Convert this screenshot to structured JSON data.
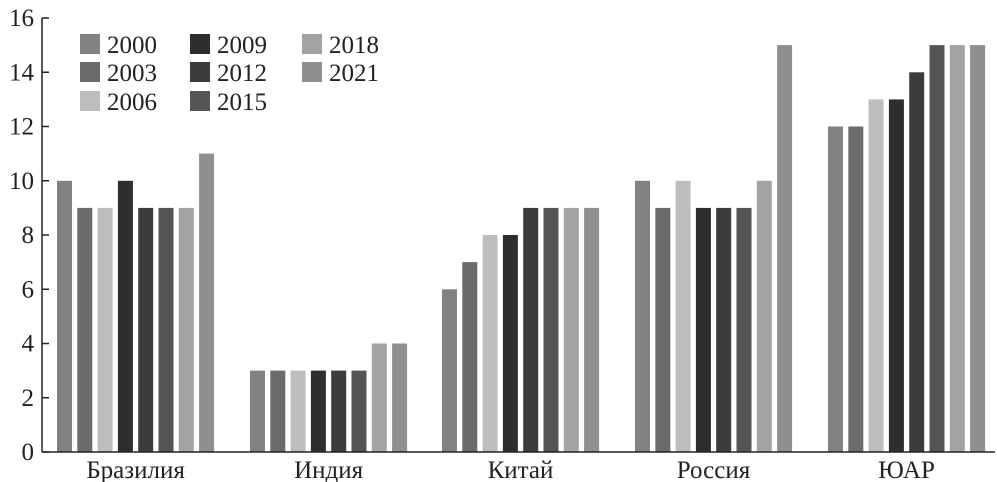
{
  "chart_data": {
    "type": "bar",
    "categories": [
      "Бразилия",
      "Индия",
      "Китай",
      "Россия",
      "ЮАР"
    ],
    "series": [
      {
        "name": "2000",
        "color": "#828282",
        "values": [
          10,
          3,
          6,
          10,
          12
        ]
      },
      {
        "name": "2003",
        "color": "#6b6b6b",
        "values": [
          9,
          3,
          7,
          9,
          12
        ]
      },
      {
        "name": "2006",
        "color": "#bdbdbd",
        "values": [
          9,
          3,
          8,
          10,
          13
        ]
      },
      {
        "name": "2009",
        "color": "#2e2e2e",
        "values": [
          10,
          3,
          8,
          9,
          13
        ]
      },
      {
        "name": "2012",
        "color": "#3c3c3c",
        "values": [
          9,
          3,
          9,
          9,
          14
        ]
      },
      {
        "name": "2015",
        "color": "#555555",
        "values": [
          9,
          3,
          9,
          9,
          15
        ]
      },
      {
        "name": "2018",
        "color": "#a3a3a3",
        "values": [
          9,
          4,
          9,
          10,
          15
        ]
      },
      {
        "name": "2021",
        "color": "#8f8f8f",
        "values": [
          11,
          4,
          9,
          15,
          15
        ]
      }
    ],
    "yticks": [
      "0",
      "2",
      "4",
      "6",
      "8",
      "10",
      "12",
      "14",
      "16"
    ],
    "ylim": [
      0,
      16
    ],
    "legend_position": "top-left",
    "grid": false
  }
}
